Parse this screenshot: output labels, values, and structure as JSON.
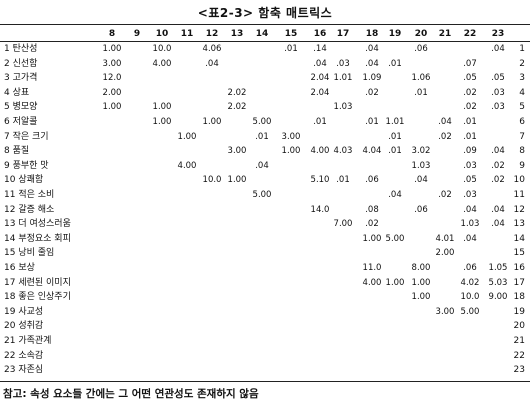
{
  "title": "<표2-3> 함축 매트릭스",
  "columns": [
    "8",
    "9",
    "10",
    "11",
    "12",
    "13",
    "14",
    "15",
    "16",
    "17",
    "18",
    "19",
    "20",
    "21",
    "22",
    "23"
  ],
  "rows": [
    {
      "label": "1 탄산성",
      "num": "1",
      "values": {
        "8": "1.00",
        "10": "10.0",
        "12": "4.06",
        "15": ".01",
        "16": ".14",
        "18": ".04",
        "20": ".06",
        "23": ".04"
      }
    },
    {
      "label": "2 신선함",
      "num": "2",
      "values": {
        "8": "3.00",
        "10": "4.00",
        "12": ".04",
        "16": ".04",
        "17": ".03",
        "18": ".04",
        "19": ".01",
        "22": ".07"
      }
    },
    {
      "label": "3 고가격",
      "num": "3",
      "values": {
        "8": "12.0",
        "16": "2.04",
        "17": "1.01",
        "18": "1.09",
        "20": "1.06",
        "22": ".05",
        "23": ".05"
      }
    },
    {
      "label": "4 상표",
      "num": "4",
      "values": {
        "8": "2.00",
        "13": "2.02",
        "16": "2.04",
        "18": ".02",
        "20": ".01",
        "22": ".02",
        "23": ".03"
      }
    },
    {
      "label": "5 병모양",
      "num": "5",
      "values": {
        "8": "1.00",
        "10": "1.00",
        "13": "2.02",
        "17": "1.03",
        "22": ".02",
        "23": ".03"
      }
    },
    {
      "label": "6 저알콜",
      "num": "6",
      "values": {
        "10": "1.00",
        "12": "1.00",
        "14": "5.00",
        "16": ".01",
        "18": ".01",
        "19": "1.01",
        "21": ".04",
        "22": ".01"
      }
    },
    {
      "label": "7 작은 크기",
      "num": "7",
      "values": {
        "11": "1.00",
        "14": ".01",
        "15": "3.00",
        "19": ".01",
        "21": ".02",
        "22": ".01"
      }
    },
    {
      "label": "8 품질",
      "num": "8",
      "values": {
        "13": "3.00",
        "15": "1.00",
        "16": "4.00",
        "17": "4.03",
        "18": "4.04",
        "19": ".01",
        "20": "3.02",
        "22": ".09",
        "23": ".04"
      }
    },
    {
      "label": "9 풍부한 맛",
      "num": "9",
      "values": {
        "11": "4.00",
        "14": ".04",
        "20": "1.03",
        "22": ".03",
        "23": ".02"
      }
    },
    {
      "label": "10 상쾌함",
      "num": "10",
      "values": {
        "12": "10.0",
        "13": "1.00",
        "16": "5.10",
        "17": ".01",
        "18": ".06",
        "20": ".04",
        "22": ".05",
        "23": ".02"
      }
    },
    {
      "label": "11 적은 소비",
      "num": "11",
      "values": {
        "14": "5.00",
        "19": ".04",
        "21": ".02",
        "22": ".03"
      }
    },
    {
      "label": "12 갈증 해소",
      "num": "12",
      "values": {
        "16": "14.0",
        "18": ".08",
        "20": ".06",
        "22": ".04",
        "23": ".04"
      }
    },
    {
      "label": "13 더 여성스러움",
      "num": "13",
      "values": {
        "17": "7.00",
        "18": ".02",
        "22": "1.03",
        "23": ".04"
      }
    },
    {
      "label": "14 부정요소 회피",
      "num": "14",
      "values": {
        "18": "1.00",
        "19": "5.00",
        "21": "4.01",
        "22": ".04"
      }
    },
    {
      "label": "15 낭비 줄임",
      "num": "15",
      "values": {
        "21": "2.00"
      }
    },
    {
      "label": "16 보상",
      "num": "16",
      "values": {
        "18": "11.0",
        "20": "8.00",
        "22": ".06",
        "23": "1.05"
      }
    },
    {
      "label": "17 세련된 이미지",
      "num": "17",
      "values": {
        "18": "4.00",
        "19": "1.00",
        "20": "1.00",
        "22": "4.02",
        "23": "5.03"
      }
    },
    {
      "label": "18 좋은 인상주기",
      "num": "18",
      "values": {
        "20": "1.00",
        "22": "10.0",
        "23": "9.00"
      }
    },
    {
      "label": "19 사교성",
      "num": "19",
      "values": {
        "21": "3.00",
        "22": "5.00"
      }
    },
    {
      "label": "20 성취감",
      "num": "20",
      "values": {}
    },
    {
      "label": "21 가족관계",
      "num": "21",
      "values": {}
    },
    {
      "label": "22 소속감",
      "num": "22",
      "values": {}
    },
    {
      "label": "23 자존심",
      "num": "23",
      "values": {}
    }
  ],
  "note": "참고: 속성 요소들 간에는 그 어떤 연관성도 존재하지 않음"
}
